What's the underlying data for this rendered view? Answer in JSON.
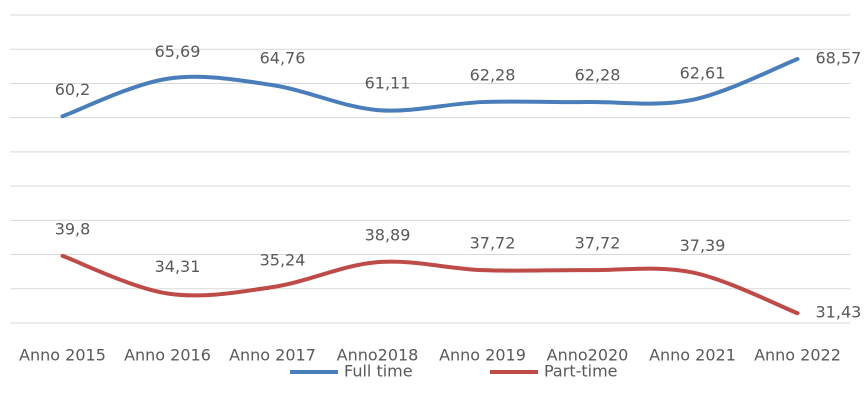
{
  "chart_data": {
    "type": "line",
    "categories": [
      "Anno 2015",
      "Anno 2016",
      "Anno 2017",
      "Anno2018",
      "Anno 2019",
      "Anno2020",
      "Anno 2021",
      "Anno 2022"
    ],
    "series": [
      {
        "name": "Full time",
        "color": "#4a7ebb",
        "values": [
          60.2,
          65.69,
          64.76,
          61.11,
          62.28,
          62.28,
          62.61,
          68.57
        ],
        "value_labels": [
          "60,2",
          "65,69",
          "64,76",
          "61,11",
          "62,28",
          "62,28",
          "62,61",
          "68,57"
        ]
      },
      {
        "name": "Part-time",
        "color": "#be4b48",
        "values": [
          39.8,
          34.31,
          35.24,
          38.89,
          37.72,
          37.72,
          37.39,
          31.43
        ],
        "value_labels": [
          "39,8",
          "34,31",
          "35,24",
          "38,89",
          "37,72",
          "37,72",
          "37,39",
          "31,43"
        ]
      }
    ],
    "ylim": [
      30,
      75
    ],
    "yticks": [
      30,
      35,
      40,
      45,
      50,
      55,
      60,
      65,
      70,
      75
    ],
    "grid": true,
    "legend": "bottom"
  }
}
